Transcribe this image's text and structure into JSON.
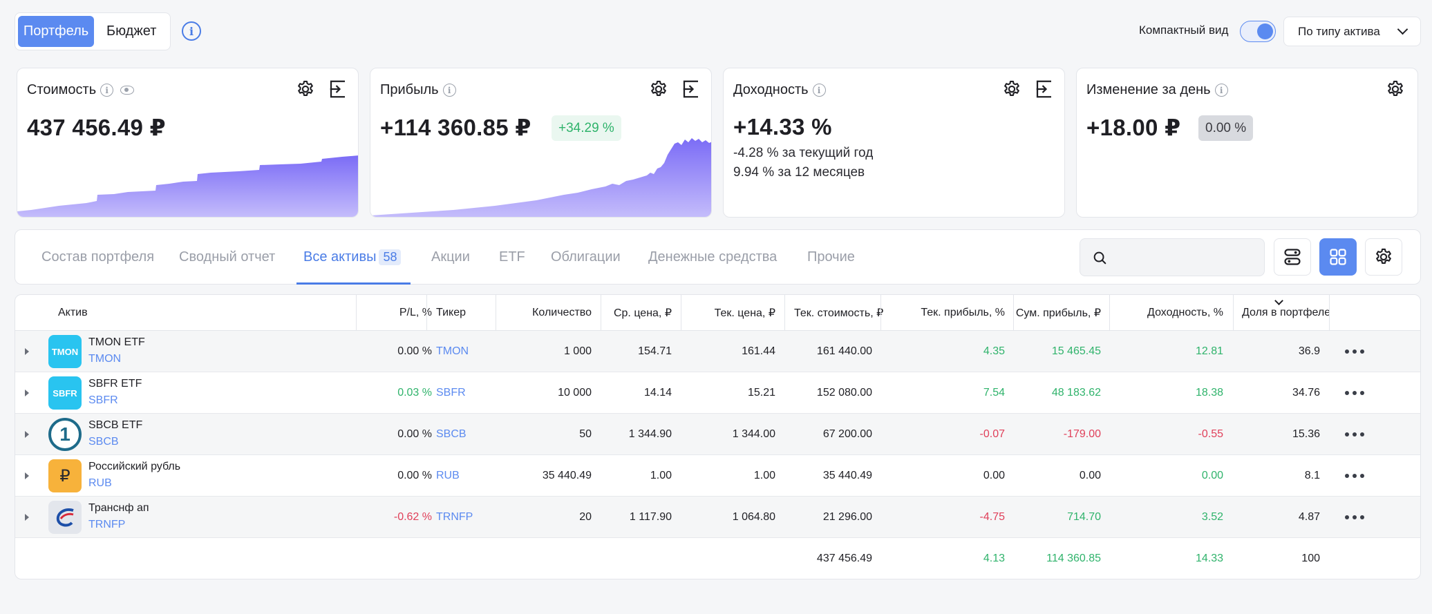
{
  "top": {
    "tab_portfolio": "Портфель",
    "tab_budget": "Бюджет",
    "compact_label": "Компактный вид",
    "compact_on": true,
    "group_select": "По типу актива"
  },
  "cards": {
    "value": {
      "title": "Стоимость",
      "amount": "437 456.49 ₽"
    },
    "profit": {
      "title": "Прибыль",
      "amount": "+114 360.85 ₽",
      "badge": "+34.29 %"
    },
    "yield": {
      "title": "Доходность",
      "amount": "+14.33 %",
      "line1": "-4.28 % за текущий год",
      "line2": "9.94 % за 12 месяцев"
    },
    "day": {
      "title": "Изменение за день",
      "amount": "+18.00 ₽",
      "badge": "0.00 %"
    }
  },
  "tabs": {
    "composition": "Состав портфеля",
    "summary": "Сводный отчет",
    "all_assets": "Все активы",
    "all_assets_count": "58",
    "stocks": "Акции",
    "etf": "ETF",
    "bonds": "Облигации",
    "cash": "Денежные средства",
    "other": "Прочие"
  },
  "table": {
    "headers": {
      "asset": "Актив",
      "pl": "P/L, %",
      "ticker": "Тикер",
      "qty": "Количество",
      "avg_price": "Ср. цена, ₽",
      "cur_price": "Тек. цена, ₽",
      "cur_value": "Тек. стоимость, ₽",
      "cur_profit": "Тек. прибыль, %",
      "sum_profit": "Сум. прибыль, ₽",
      "yield": "Доходность, %",
      "share": "Доля в портфеле"
    },
    "rows": [
      {
        "name": "TMON ETF",
        "ticker": "TMON",
        "logo_text": "TMON",
        "pl": "0.00 %",
        "qty": "1 000",
        "avg": "154.71",
        "cur": "161.44",
        "value": "161 440.00",
        "cprofit": "4.35",
        "sprofit": "15 465.45",
        "yield": "12.81",
        "share": "36.9"
      },
      {
        "name": "SBFR ETF",
        "ticker": "SBFR",
        "logo_text": "SBFR",
        "pl": "0.03 %",
        "qty": "10 000",
        "avg": "14.14",
        "cur": "15.21",
        "value": "152 080.00",
        "cprofit": "7.54",
        "sprofit": "48 183.62",
        "yield": "18.38",
        "share": "34.76"
      },
      {
        "name": "SBCB ETF",
        "ticker": "SBCB",
        "logo_text": "1",
        "pl": "0.00 %",
        "qty": "50",
        "avg": "1 344.90",
        "cur": "1 344.00",
        "value": "67 200.00",
        "cprofit": "-0.07",
        "sprofit": "-179.00",
        "yield": "-0.55",
        "share": "15.36"
      },
      {
        "name": "Российский рубль",
        "ticker": "RUB",
        "logo_text": "₽",
        "pl": "0.00 %",
        "qty": "35 440.49",
        "avg": "1.00",
        "cur": "1.00",
        "value": "35 440.49",
        "cprofit": "0.00",
        "sprofit": "0.00",
        "yield": "0.00",
        "share": "8.1"
      },
      {
        "name": "Транснф ап",
        "ticker": "TRNFP",
        "logo_text": "",
        "pl": "-0.62 %",
        "qty": "20",
        "avg": "1 117.90",
        "cur": "1 064.80",
        "value": "21 296.00",
        "cprofit": "-4.75",
        "sprofit": "714.70",
        "yield": "3.52",
        "share": "4.87"
      }
    ],
    "totals": {
      "value": "437 456.49",
      "cprofit": "4.13",
      "sprofit": "114 360.85",
      "yield": "14.33",
      "share": "100"
    }
  },
  "colors": {
    "accent": "#5b8af0",
    "green": "#2fb36b",
    "red": "#e0405a",
    "chart": "#7b6cf6"
  }
}
